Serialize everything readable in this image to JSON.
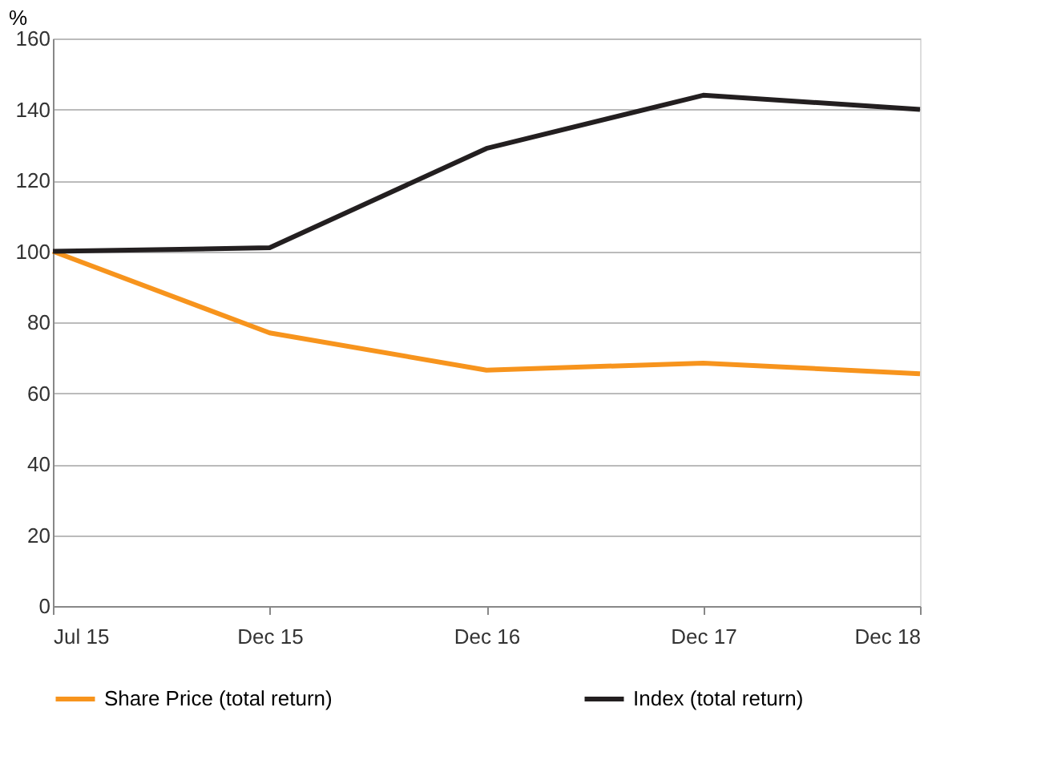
{
  "chart_data": {
    "type": "line",
    "ylabel": "%",
    "categories": [
      "Jul 15",
      "Dec 15",
      "Dec 16",
      "Dec 17",
      "Dec 18"
    ],
    "series": [
      {
        "name": "Share Price (total return)",
        "color": "#f7941d",
        "values": [
          100,
          77,
          66.5,
          68.5,
          65.5
        ]
      },
      {
        "name": "Index (total return)",
        "color": "#231f20",
        "values": [
          100,
          101,
          129,
          144,
          140
        ]
      }
    ],
    "ylim": [
      0,
      160
    ],
    "yticks": [
      0,
      20,
      40,
      60,
      80,
      100,
      120,
      140,
      160
    ],
    "grid": "y",
    "legend": "bottom",
    "marker": "none",
    "line_style": "solid"
  }
}
